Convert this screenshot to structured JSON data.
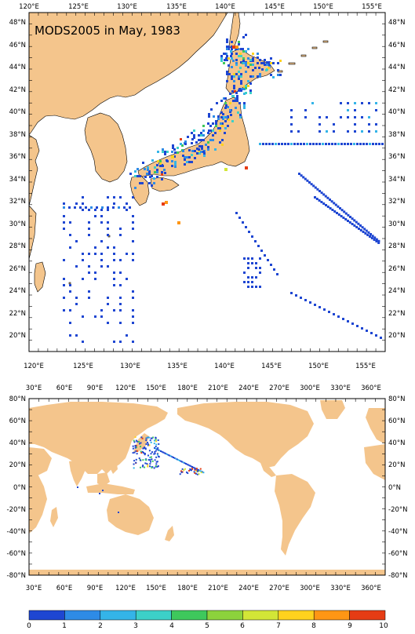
{
  "title": "MODS2005 in May, 1983",
  "colors": {
    "land": "#F4C58C",
    "ocean": "#ffffff",
    "frame": "#000000",
    "scale": [
      "#1E46D2",
      "#2E8BE6",
      "#34B4E8",
      "#3CD0C8",
      "#3EC85C",
      "#8CD23C",
      "#D2E637",
      "#FFD21E",
      "#FF9614",
      "#E63C14"
    ]
  },
  "top_map": {
    "x_labels": [
      "120°E",
      "125°E",
      "130°E",
      "135°E",
      "140°E",
      "145°E",
      "150°E",
      "155°E"
    ],
    "y_labels": [
      "48°N",
      "46°N",
      "44°N",
      "42°N",
      "40°N",
      "38°N",
      "36°N",
      "34°N",
      "32°N",
      "30°N",
      "28°N",
      "26°N",
      "24°N",
      "22°N",
      "20°N"
    ]
  },
  "bottom_map": {
    "x_labels": [
      "30°E",
      "60°E",
      "90°E",
      "120°E",
      "150°E",
      "180°E",
      "210°E",
      "240°E",
      "270°E",
      "300°E",
      "330°E",
      "360°E"
    ],
    "y_labels": [
      "80°N",
      "60°N",
      "40°N",
      "20°N",
      "0°N",
      "-20°N",
      "-40°N",
      "-60°N",
      "-80°N"
    ]
  },
  "colorbar": {
    "labels": [
      "0",
      "1",
      "2",
      "3",
      "4",
      "5",
      "6",
      "7",
      "8",
      "9",
      "10"
    ]
  }
}
